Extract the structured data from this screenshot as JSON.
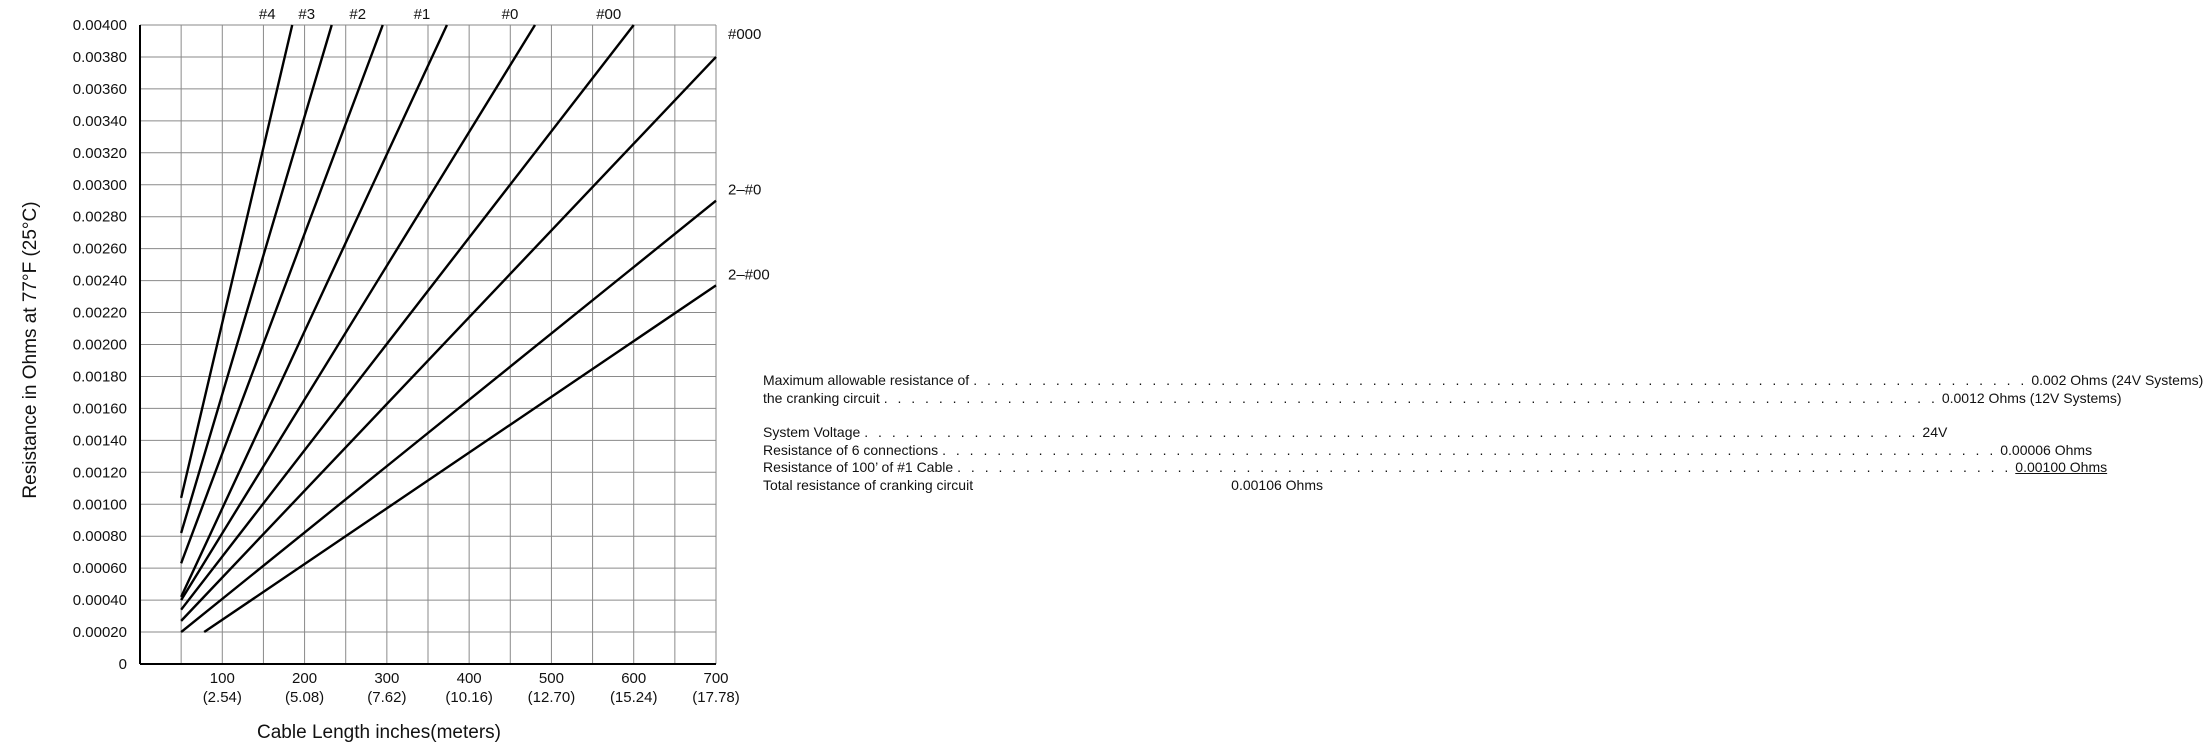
{
  "chart_data": {
    "type": "line",
    "xlabel": "Cable Length inches(meters)",
    "ylabel": "Resistance in Ohms at 77°F (25°C)",
    "xlim": [
      0,
      700
    ],
    "ylim": [
      0,
      0.004
    ],
    "x_ticks": [
      {
        "value": 100,
        "label": "100",
        "sub": "(2.54)"
      },
      {
        "value": 200,
        "label": "200",
        "sub": "(5.08)"
      },
      {
        "value": 300,
        "label": "300",
        "sub": "(7.62)"
      },
      {
        "value": 400,
        "label": "400",
        "sub": "(10.16)"
      },
      {
        "value": 500,
        "label": "500",
        "sub": "(12.70)"
      },
      {
        "value": 600,
        "label": "600",
        "sub": "(15.24)"
      },
      {
        "value": 700,
        "label": "700",
        "sub": "(17.78)"
      }
    ],
    "y_ticks": [
      "0",
      "0.00020",
      "0.00040",
      "0.00060",
      "0.00080",
      "0.00100",
      "0.00120",
      "0.00140",
      "0.00160",
      "0.00180",
      "0.00200",
      "0.00220",
      "0.00240",
      "0.00260",
      "0.00280",
      "0.00300",
      "0.00320",
      "0.00340",
      "0.00360",
      "0.00380",
      "0.00400"
    ],
    "grid": true,
    "series": [
      {
        "name": "#4",
        "points": [
          [
            50,
            0.00104
          ],
          [
            185,
            0.004
          ]
        ]
      },
      {
        "name": "#3",
        "points": [
          [
            50,
            0.00082
          ],
          [
            233,
            0.004
          ]
        ]
      },
      {
        "name": "#2",
        "points": [
          [
            50,
            0.00063
          ],
          [
            295,
            0.004
          ]
        ]
      },
      {
        "name": "#1",
        "points": [
          [
            50,
            0.00042
          ],
          [
            373,
            0.004
          ]
        ]
      },
      {
        "name": "#0",
        "points": [
          [
            50,
            0.0004
          ],
          [
            480,
            0.004
          ]
        ]
      },
      {
        "name": "#00",
        "points": [
          [
            50,
            0.00034
          ],
          [
            600,
            0.004
          ]
        ]
      },
      {
        "name": "#000",
        "points": [
          [
            50,
            0.00027
          ],
          [
            700,
            0.0038
          ]
        ]
      },
      {
        "name": "2–#0",
        "points": [
          [
            50,
            0.0002
          ],
          [
            700,
            0.0029
          ]
        ]
      },
      {
        "name": "2–#00",
        "points": [
          [
            78,
            0.0002
          ],
          [
            700,
            0.00237
          ]
        ]
      }
    ]
  },
  "notes": {
    "max_label_1": "Maximum allowable resistance of",
    "max_value_1": "0.002 Ohms (24V Systems)",
    "max_label_2": "the cranking circuit",
    "max_value_2": "0.0012 Ohms (12V Systems)",
    "rows": [
      {
        "label": "System Voltage",
        "value": "24V"
      },
      {
        "label": "Resistance of 6 connections",
        "value": "0.00006 Ohms"
      },
      {
        "label": "Resistance of 100’ of #1 Cable",
        "value": "0.00100 Ohms"
      },
      {
        "label": "Total resistance of cranking circuit",
        "value": "0.00106 Ohms"
      }
    ]
  }
}
